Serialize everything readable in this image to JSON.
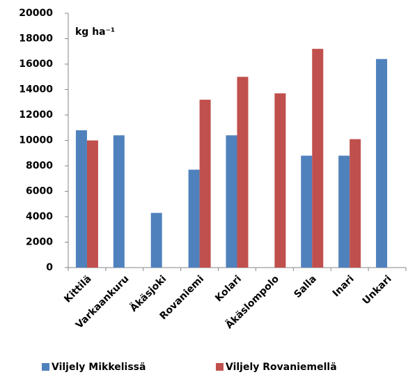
{
  "chart_data": {
    "type": "bar",
    "annotation": "kg ha⁻¹",
    "categories": [
      "Kittilä",
      "Varkaankuru",
      "Äkäsjoki",
      "Rovaniemi",
      "Kolari",
      "Äkäslompolo",
      "Salla",
      "Inari",
      "Unkari"
    ],
    "series": [
      {
        "name": "Viljely Mikkelissä",
        "color": "#4f81bd",
        "values": [
          10800,
          10400,
          4300,
          7700,
          10400,
          null,
          8800,
          8800,
          16400
        ]
      },
      {
        "name": "Viljely Rovaniemellä",
        "color": "#c0504d",
        "values": [
          10000,
          null,
          null,
          13200,
          15000,
          13700,
          17200,
          10100,
          null
        ]
      }
    ],
    "ylim": [
      0,
      20000
    ],
    "yticks": [
      0,
      2000,
      4000,
      6000,
      8000,
      10000,
      12000,
      14000,
      16000,
      18000,
      20000
    ],
    "grid": false
  }
}
